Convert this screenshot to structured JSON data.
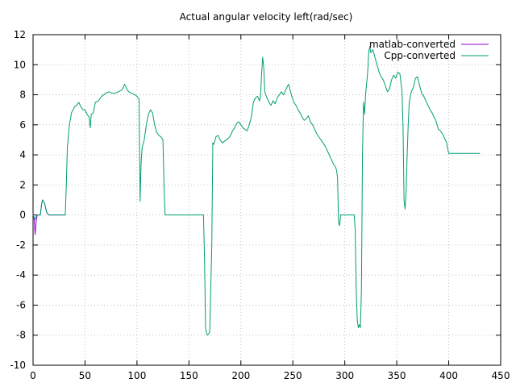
{
  "chart_data": {
    "type": "line",
    "title": "Actual angular velocity left(rad/sec)",
    "xlabel": "",
    "ylabel": "",
    "xlim": [
      0,
      450
    ],
    "ylim": [
      -10,
      12
    ],
    "xticks": [
      0,
      50,
      100,
      150,
      200,
      250,
      300,
      350,
      400,
      450
    ],
    "yticks": [
      -10,
      -8,
      -6,
      -4,
      -2,
      0,
      2,
      4,
      6,
      8,
      10,
      12
    ],
    "grid": true,
    "legend_position": "top-right",
    "series": [
      {
        "name": "matlab-converted",
        "color": "#9400d3",
        "points": [
          [
            0,
            0.1
          ],
          [
            1,
            -0.2
          ],
          [
            2,
            -1.3
          ],
          [
            3,
            -0.4
          ],
          [
            4,
            0
          ],
          [
            5,
            0
          ],
          [
            6,
            0
          ],
          [
            7,
            0
          ],
          [
            8,
            0.6
          ],
          [
            9,
            1.0
          ],
          [
            10,
            0.9
          ],
          [
            11,
            0.8
          ],
          [
            12,
            0.5
          ],
          [
            13,
            0.2
          ],
          [
            15,
            0
          ],
          [
            20,
            0
          ],
          [
            25,
            0
          ],
          [
            31,
            0
          ]
        ]
      },
      {
        "name": "Cpp-converted",
        "color": "#009e73",
        "points": [
          [
            0,
            0
          ],
          [
            2,
            -0.3
          ],
          [
            3,
            -0.1
          ],
          [
            4,
            0
          ],
          [
            7,
            0
          ],
          [
            8,
            0.6
          ],
          [
            9,
            1.0
          ],
          [
            10,
            0.9
          ],
          [
            11,
            0.8
          ],
          [
            12,
            0.5
          ],
          [
            13,
            0.2
          ],
          [
            15,
            0
          ],
          [
            20,
            0
          ],
          [
            25,
            0
          ],
          [
            31,
            0
          ],
          [
            32,
            2.0
          ],
          [
            33,
            4.5
          ],
          [
            35,
            6.0
          ],
          [
            37,
            6.8
          ],
          [
            40,
            7.2
          ],
          [
            42,
            7.3
          ],
          [
            44,
            7.5
          ],
          [
            46,
            7.2
          ],
          [
            48,
            7.0
          ],
          [
            50,
            7.0
          ],
          [
            52,
            6.7
          ],
          [
            54,
            6.5
          ],
          [
            55,
            5.8
          ],
          [
            56,
            6.7
          ],
          [
            58,
            6.8
          ],
          [
            60,
            7.5
          ],
          [
            63,
            7.6
          ],
          [
            66,
            7.9
          ],
          [
            68,
            8.0
          ],
          [
            70,
            8.1
          ],
          [
            73,
            8.2
          ],
          [
            76,
            8.1
          ],
          [
            79,
            8.1
          ],
          [
            82,
            8.2
          ],
          [
            85,
            8.3
          ],
          [
            87,
            8.5
          ],
          [
            88,
            8.7
          ],
          [
            89,
            8.6
          ],
          [
            90,
            8.4
          ],
          [
            92,
            8.2
          ],
          [
            95,
            8.1
          ],
          [
            98,
            8.0
          ],
          [
            100,
            7.9
          ],
          [
            102,
            7.7
          ],
          [
            103,
            0.9
          ],
          [
            104,
            3.5
          ],
          [
            105,
            4.5
          ],
          [
            107,
            5.0
          ],
          [
            109,
            6.0
          ],
          [
            111,
            6.7
          ],
          [
            113,
            7.0
          ],
          [
            115,
            6.8
          ],
          [
            117,
            6.0
          ],
          [
            119,
            5.5
          ],
          [
            121,
            5.3
          ],
          [
            123,
            5.2
          ],
          [
            125,
            5.0
          ],
          [
            126,
            2.0
          ],
          [
            127,
            0
          ],
          [
            130,
            0
          ],
          [
            140,
            0
          ],
          [
            150,
            0
          ],
          [
            160,
            0
          ],
          [
            164,
            0
          ],
          [
            165,
            -3
          ],
          [
            166,
            -7.5
          ],
          [
            167,
            -7.9
          ],
          [
            168,
            -8.0
          ],
          [
            170,
            -7.8
          ],
          [
            171,
            -5.0
          ],
          [
            172,
            -2.0
          ],
          [
            173,
            4.8
          ],
          [
            174,
            4.7
          ],
          [
            176,
            5.2
          ],
          [
            178,
            5.3
          ],
          [
            180,
            5.0
          ],
          [
            182,
            4.8
          ],
          [
            184,
            4.9
          ],
          [
            186,
            5.0
          ],
          [
            188,
            5.1
          ],
          [
            190,
            5.3
          ],
          [
            192,
            5.6
          ],
          [
            194,
            5.8
          ],
          [
            196,
            6.1
          ],
          [
            198,
            6.2
          ],
          [
            200,
            6.0
          ],
          [
            202,
            5.8
          ],
          [
            204,
            5.7
          ],
          [
            206,
            5.6
          ],
          [
            208,
            6.0
          ],
          [
            210,
            6.5
          ],
          [
            212,
            7.5
          ],
          [
            214,
            7.8
          ],
          [
            216,
            7.9
          ],
          [
            218,
            7.6
          ],
          [
            219,
            8.0
          ],
          [
            220,
            9.5
          ],
          [
            221,
            10.5
          ],
          [
            222,
            9.8
          ],
          [
            223,
            8.2
          ],
          [
            225,
            7.8
          ],
          [
            227,
            7.5
          ],
          [
            229,
            7.3
          ],
          [
            231,
            7.6
          ],
          [
            233,
            7.4
          ],
          [
            235,
            7.8
          ],
          [
            237,
            8.0
          ],
          [
            239,
            8.2
          ],
          [
            241,
            8.0
          ],
          [
            243,
            8.3
          ],
          [
            245,
            8.6
          ],
          [
            246,
            8.7
          ],
          [
            247,
            8.4
          ],
          [
            249,
            7.9
          ],
          [
            251,
            7.5
          ],
          [
            253,
            7.3
          ],
          [
            255,
            7.0
          ],
          [
            257,
            6.8
          ],
          [
            259,
            6.5
          ],
          [
            261,
            6.3
          ],
          [
            263,
            6.4
          ],
          [
            265,
            6.6
          ],
          [
            267,
            6.2
          ],
          [
            269,
            6.0
          ],
          [
            271,
            5.7
          ],
          [
            273,
            5.4
          ],
          [
            275,
            5.2
          ],
          [
            277,
            5.0
          ],
          [
            279,
            4.8
          ],
          [
            281,
            4.6
          ],
          [
            283,
            4.3
          ],
          [
            285,
            4.0
          ],
          [
            287,
            3.7
          ],
          [
            289,
            3.4
          ],
          [
            291,
            3.2
          ],
          [
            292,
            3.0
          ],
          [
            293,
            2.5
          ],
          [
            294,
            -0.5
          ],
          [
            295,
            -0.7
          ],
          [
            296,
            0
          ],
          [
            300,
            0
          ],
          [
            305,
            0
          ],
          [
            309,
            0
          ],
          [
            310,
            -1
          ],
          [
            311,
            -5.0
          ],
          [
            312,
            -7.0
          ],
          [
            313,
            -7.5
          ],
          [
            314,
            -7.3
          ],
          [
            315,
            -7.5
          ],
          [
            316,
            -5.0
          ],
          [
            317,
            4.0
          ],
          [
            318,
            7.5
          ],
          [
            319,
            6.7
          ],
          [
            320,
            8.0
          ],
          [
            322,
            9.5
          ],
          [
            323,
            10.8
          ],
          [
            324,
            11.2
          ],
          [
            325,
            10.8
          ],
          [
            327,
            11.0
          ],
          [
            329,
            10.5
          ],
          [
            331,
            10.0
          ],
          [
            333,
            9.5
          ],
          [
            335,
            9.2
          ],
          [
            337,
            9.0
          ],
          [
            339,
            8.6
          ],
          [
            341,
            8.2
          ],
          [
            343,
            8.4
          ],
          [
            345,
            9.0
          ],
          [
            347,
            9.3
          ],
          [
            349,
            9.1
          ],
          [
            351,
            9.5
          ],
          [
            353,
            9.4
          ],
          [
            354,
            8.8
          ],
          [
            355,
            8.3
          ],
          [
            356,
            6.0
          ],
          [
            357,
            1.0
          ],
          [
            358,
            0.4
          ],
          [
            359,
            1.5
          ],
          [
            360,
            4.0
          ],
          [
            361,
            6.0
          ],
          [
            362,
            7.5
          ],
          [
            364,
            8.2
          ],
          [
            366,
            8.5
          ],
          [
            368,
            9.1
          ],
          [
            370,
            9.2
          ],
          [
            372,
            8.6
          ],
          [
            374,
            8.1
          ],
          [
            376,
            7.9
          ],
          [
            378,
            7.6
          ],
          [
            380,
            7.3
          ],
          [
            382,
            7.0
          ],
          [
            384,
            6.8
          ],
          [
            386,
            6.5
          ],
          [
            388,
            6.2
          ],
          [
            390,
            5.7
          ],
          [
            392,
            5.6
          ],
          [
            394,
            5.4
          ],
          [
            396,
            5.1
          ],
          [
            398,
            4.8
          ],
          [
            399,
            4.4
          ],
          [
            400,
            4.1
          ],
          [
            405,
            4.1
          ],
          [
            410,
            4.1
          ],
          [
            415,
            4.1
          ],
          [
            420,
            4.1
          ],
          [
            425,
            4.1
          ],
          [
            430,
            4.1
          ]
        ]
      }
    ]
  }
}
